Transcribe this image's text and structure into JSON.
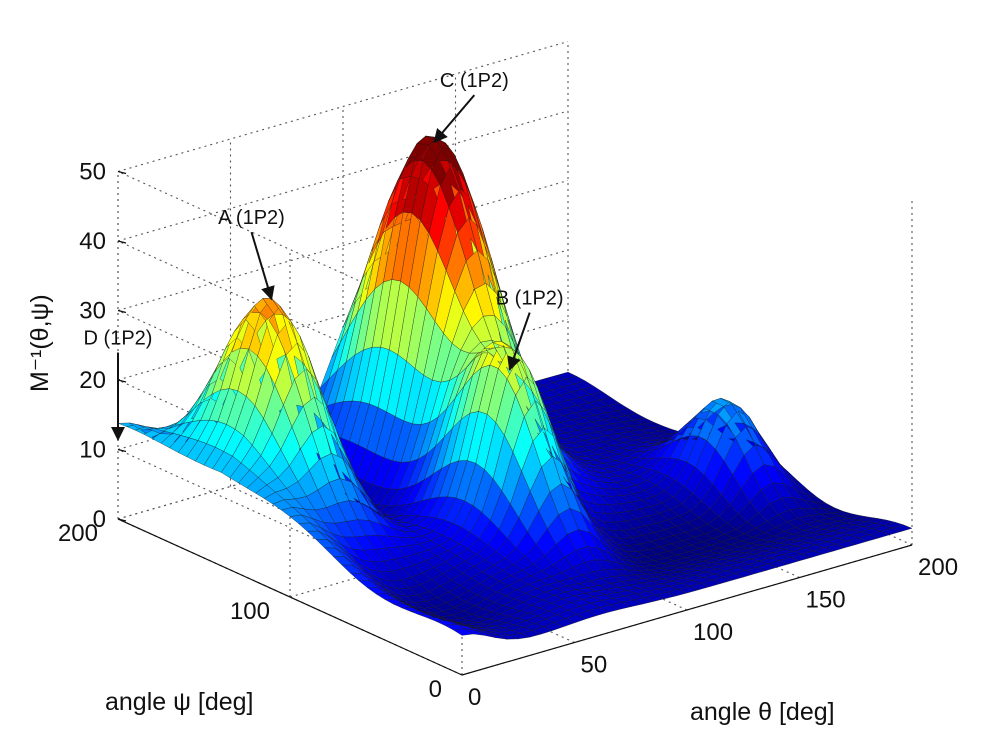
{
  "chart_data": {
    "type": "surface3d",
    "zlabel": "M⁻¹(θ,ψ)",
    "xlabel": "angle θ [deg]",
    "ylabel": "angle ψ [deg]",
    "xlim": [
      0,
      200
    ],
    "ylim": [
      0,
      200
    ],
    "zlim": [
      0,
      50
    ],
    "xticks": [
      "0",
      "50",
      "100",
      "150",
      "200"
    ],
    "yticks": [
      "0",
      "100",
      "200"
    ],
    "zticks": [
      "0",
      "10",
      "20",
      "30",
      "40",
      "50"
    ],
    "grid": true,
    "colormap": "jet",
    "peaks": [
      {
        "label": "A (1P2)",
        "theta": 30,
        "psi": 150,
        "value": 34
      },
      {
        "label": "B (1P2)",
        "theta": 90,
        "psi": 90,
        "value": 25
      },
      {
        "label": "C (1P2)",
        "theta": 110,
        "psi": 160,
        "value": 48
      },
      {
        "label": "D (1P2)",
        "theta": 0,
        "psi": 200,
        "value": 11
      }
    ]
  }
}
